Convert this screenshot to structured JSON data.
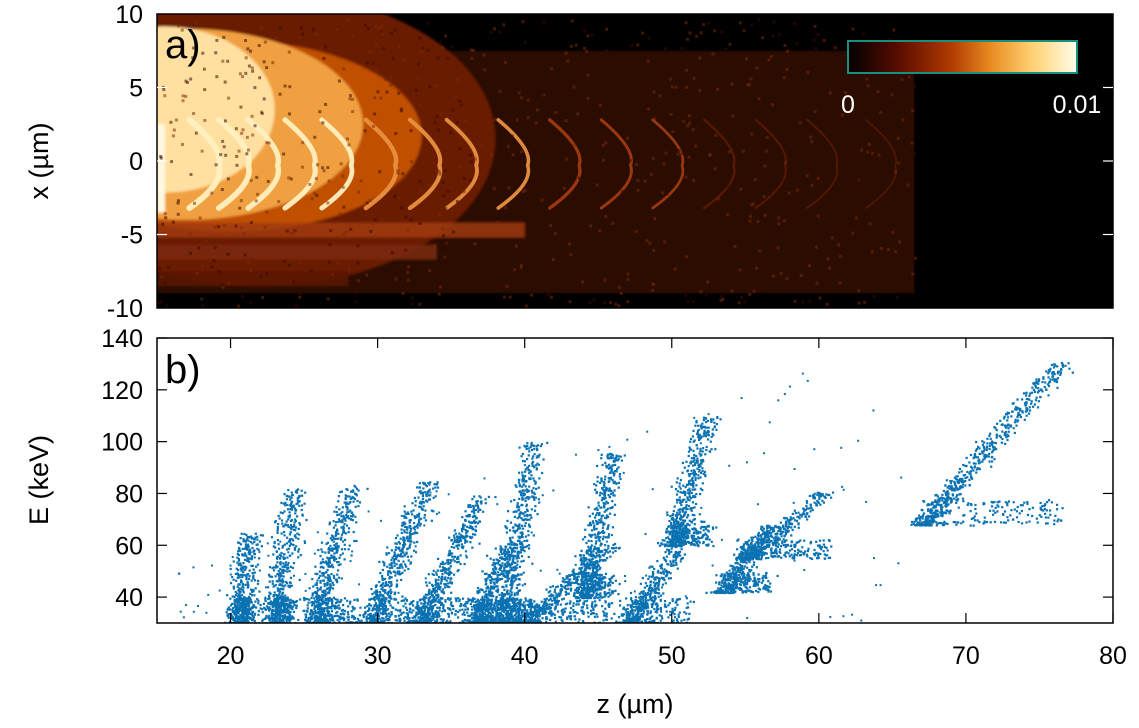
{
  "colors": {
    "scatter": "#0a72b2",
    "heatmap_stops": [
      "#000000",
      "#5a0c00",
      "#b03a00",
      "#e88a20",
      "#ffd070",
      "#fffde8"
    ],
    "colorbar_border": "#1a8f80"
  },
  "chart_data": [
    {
      "panel_label": "a)",
      "type": "heatmap",
      "ylabel": "x (µm)",
      "xlim": [
        15,
        80
      ],
      "ylim": [
        -10,
        10
      ],
      "y_ticks": [
        "-10",
        "-5",
        "0",
        "5",
        "10"
      ],
      "colorbar": {
        "range": [
          0,
          0.01
        ],
        "tick_labels": [
          "0",
          "0.01"
        ],
        "colormap": "afmhot",
        "position": "top-right"
      },
      "structure": {
        "description_shown": false,
        "hot_core_z_range": [
          15,
          36
        ],
        "hot_core_x_range": [
          -4,
          5
        ],
        "wave_crest_z": [
          19,
          21,
          23,
          25.5,
          28,
          31,
          34,
          36.5,
          40,
          43.5,
          47,
          50.5,
          54,
          57.5,
          61,
          65
        ],
        "signal_end_z": 66.5
      }
    },
    {
      "panel_label": "b)",
      "type": "scatter",
      "xlabel": "z (µm)",
      "ylabel": "E (keV)",
      "xlim": [
        15,
        80
      ],
      "ylim": [
        30,
        140
      ],
      "x_ticks": [
        "20",
        "30",
        "40",
        "50",
        "60",
        "70",
        "80"
      ],
      "y_ticks": [
        "40",
        "60",
        "80",
        "100",
        "120",
        "140"
      ],
      "series": [
        {
          "x": [
            20.5,
            21.3
          ],
          "y": [
            30,
            65
          ]
        },
        {
          "x": [
            22.9,
            24.3
          ],
          "y": [
            30,
            82
          ]
        },
        {
          "x": [
            25.6,
            28.3
          ],
          "y": [
            30,
            84
          ]
        },
        {
          "x": [
            29.5,
            33.5
          ],
          "y": [
            30,
            85
          ]
        },
        {
          "x": [
            33.0,
            37.0
          ],
          "y": [
            30,
            80
          ]
        },
        {
          "x": [
            36.8,
            38.8
          ],
          "y": [
            30,
            62
          ]
        },
        {
          "x": [
            38.6,
            40.5
          ],
          "y": [
            30,
            100
          ]
        },
        {
          "x": [
            40.0,
            46.0
          ],
          "y": [
            30,
            61
          ]
        },
        {
          "x": [
            44.0,
            46.0
          ],
          "y": [
            40,
            96
          ]
        },
        {
          "x": [
            47.0,
            51.0
          ],
          "y": [
            30,
            66
          ]
        },
        {
          "x": [
            50.0,
            52.5
          ],
          "y": [
            60,
            110
          ]
        },
        {
          "x": [
            53.5,
            56.5
          ],
          "y": [
            42,
            68
          ]
        },
        {
          "x": [
            55.0,
            60.5
          ],
          "y": [
            55,
            81
          ]
        },
        {
          "x": [
            67.0,
            76.5
          ],
          "y": [
            68,
            131
          ]
        }
      ]
    }
  ]
}
